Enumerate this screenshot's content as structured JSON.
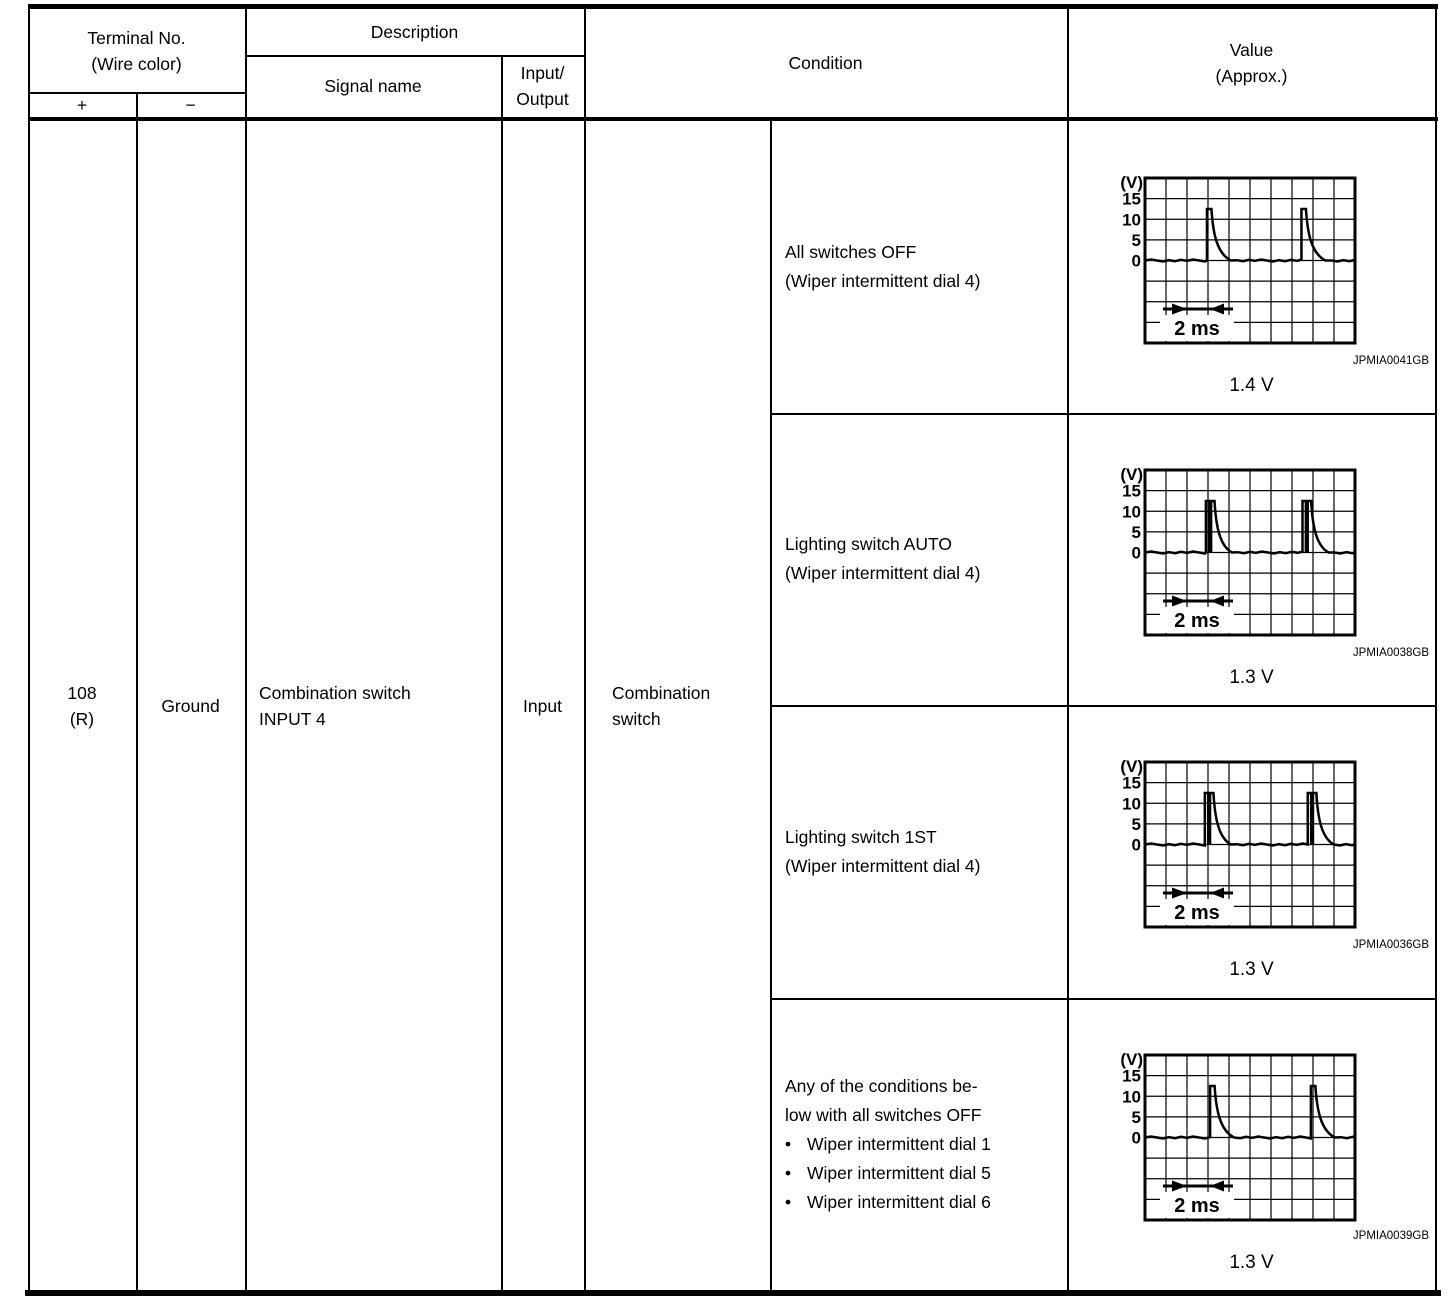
{
  "table": {
    "bullet_char": "•",
    "header": {
      "terminal_group": "Terminal No.\n(Wire color)",
      "plus": "+",
      "minus": "−",
      "description": "Description",
      "signal_name": "Signal name",
      "input_output": "Input/\nOutput",
      "condition": "Condition",
      "value": "Value\n(Approx.)"
    },
    "row": {
      "terminal_plus": "108\n(R)",
      "terminal_minus": "Ground",
      "signal_name": "Combination switch\nINPUT 4",
      "input_output": "Input",
      "condition_group": "Combination\nswitch"
    },
    "conditions": [
      {
        "text": "All switches OFF\n(Wiper intermittent dial 4)",
        "bullets": []
      },
      {
        "text": "Lighting switch AUTO\n(Wiper intermittent dial 4)",
        "bullets": []
      },
      {
        "text": "Lighting switch 1ST\n(Wiper intermittent dial 4)",
        "bullets": []
      },
      {
        "text": "Any of the conditions be-\nlow with all switches OFF",
        "bullets": [
          "Wiper intermittent dial 1",
          "Wiper intermittent dial 5",
          "Wiper intermittent dial 6"
        ]
      }
    ]
  },
  "chart_data": [
    {
      "type": "line",
      "figure_id": "JPMIA0041GB",
      "approx_value": "1.4 V",
      "y_unit": "(V)",
      "y_ticks": [
        "15",
        "10",
        "5",
        "0"
      ],
      "volts_per_division": 5,
      "x_divisions": 10,
      "y_divisions": 8,
      "zero_line_division": 4,
      "time_scale_label": "2 ms",
      "pulse_style": "single",
      "pulse_peak_v": 12.5,
      "baseline_v": 0,
      "pulse_positions_div": [
        2.95,
        7.45
      ]
    },
    {
      "type": "line",
      "figure_id": "JPMIA0038GB",
      "approx_value": "1.3 V",
      "y_unit": "(V)",
      "y_ticks": [
        "15",
        "10",
        "5",
        "0"
      ],
      "volts_per_division": 5,
      "x_divisions": 10,
      "y_divisions": 8,
      "zero_line_division": 4,
      "time_scale_label": "2 ms",
      "pulse_style": "double",
      "pulse_peak_v": 12.5,
      "baseline_v": 0,
      "pulse_positions_div": [
        2.9,
        7.5
      ]
    },
    {
      "type": "line",
      "figure_id": "JPMIA0036GB",
      "approx_value": "1.3 V",
      "y_unit": "(V)",
      "y_ticks": [
        "15",
        "10",
        "5",
        "0"
      ],
      "volts_per_division": 5,
      "x_divisions": 10,
      "y_divisions": 8,
      "zero_line_division": 4,
      "time_scale_label": "2 ms",
      "pulse_style": "double",
      "pulse_peak_v": 12.5,
      "baseline_v": 0,
      "pulse_positions_div": [
        2.85,
        7.75
      ]
    },
    {
      "type": "line",
      "figure_id": "JPMIA0039GB",
      "approx_value": "1.3 V",
      "y_unit": "(V)",
      "y_ticks": [
        "15",
        "10",
        "5",
        "0"
      ],
      "volts_per_division": 5,
      "x_divisions": 10,
      "y_divisions": 8,
      "zero_line_division": 4,
      "time_scale_label": "2 ms",
      "pulse_style": "single",
      "pulse_peak_v": 12.5,
      "baseline_v": 0,
      "pulse_positions_div": [
        3.1,
        7.9
      ]
    }
  ]
}
